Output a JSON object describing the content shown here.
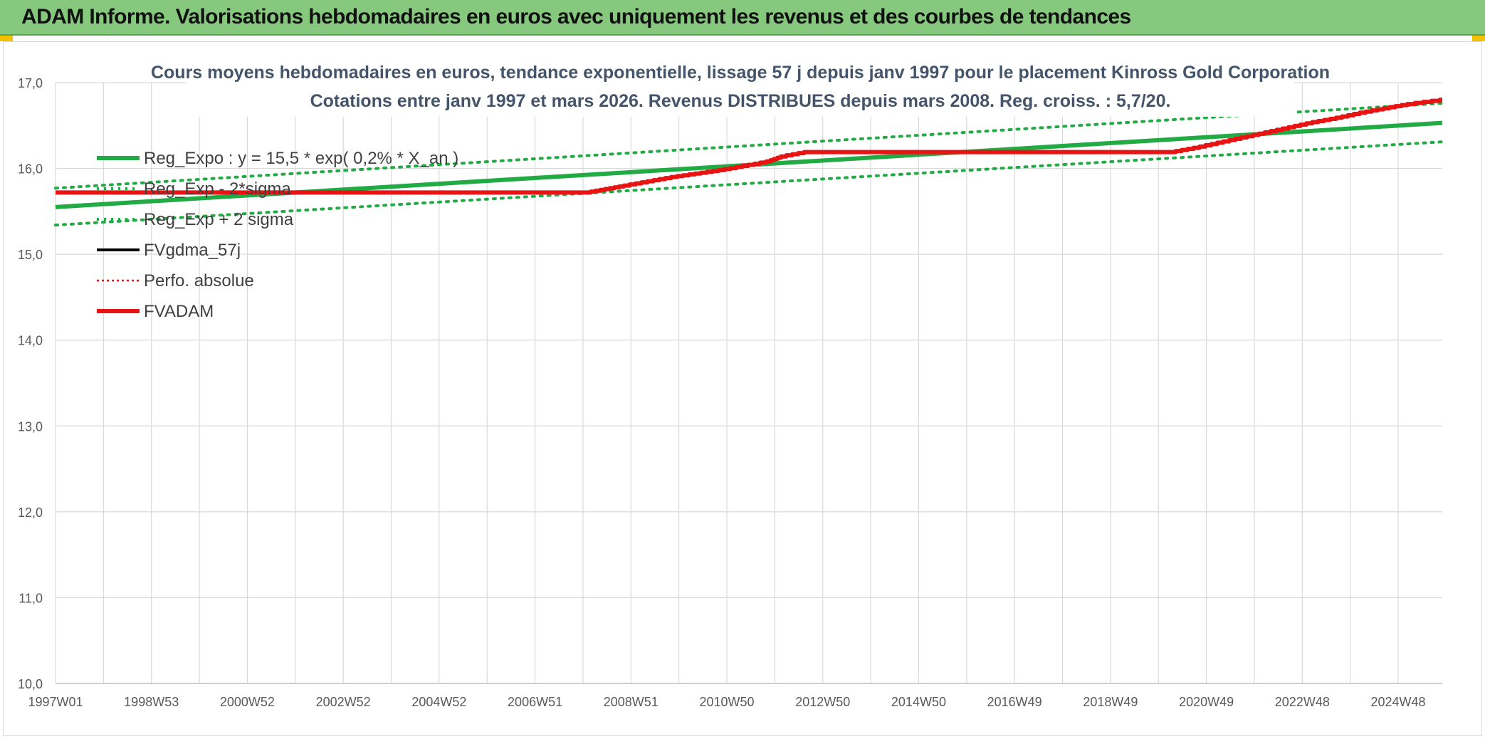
{
  "header": {
    "title": "ADAM Informe. Valorisations hebdomadaires en euros avec uniquement les revenus et des courbes de tendances"
  },
  "colors": {
    "banner": "#86c97e",
    "reg_expo": "#22aa44",
    "fvadam": "#e81414",
    "fvgdma": "#000000",
    "grid": "#d9d9d9",
    "accent": "#f2c100"
  },
  "chart_data": {
    "type": "line",
    "title": "Cours moyens hebdomadaires en euros, tendance exponentielle, lissage 57 j depuis janv 1997 pour le placement Kinross Gold Corporation",
    "subtitle": "Cotations entre janv 1997 et mars 2026. Revenus DISTRIBUES depuis mars 2008. Reg. croiss. : 5,7/20.",
    "x_ticks": [
      "1997W01",
      "1998W53",
      "2000W52",
      "2002W52",
      "2004W52",
      "2006W51",
      "2008W51",
      "2010W50",
      "2012W50",
      "2014W50",
      "2016W49",
      "2018W49",
      "2020W49",
      "2022W48",
      "2024W48"
    ],
    "y_ticks": [
      "10,0",
      "11,0",
      "12,0",
      "13,0",
      "14,0",
      "15,0",
      "16,0",
      "17,0"
    ],
    "x_range": [
      1997.0,
      2026.2
    ],
    "ylim": [
      10,
      17
    ],
    "grid": true,
    "legend_position": "top-left",
    "legend": [
      {
        "label": "Reg_Expo : y = 15,5 * exp( 0,2% *  X_an )",
        "style": "solid-thick",
        "color": "#22aa44"
      },
      {
        "label": "Reg_Exp - 2*sigma",
        "style": "dotted",
        "color": "#22aa44"
      },
      {
        "label": "Reg_Exp + 2 sigma",
        "style": "dotted",
        "color": "#22aa44"
      },
      {
        "label": "FVgdma_57j",
        "style": "solid",
        "color": "#000000"
      },
      {
        "label": "Perfo. absolue",
        "style": "dotted-thin",
        "color": "#e81414"
      },
      {
        "label": "FVADAM",
        "style": "solid-thick",
        "color": "#e81414"
      }
    ],
    "series": [
      {
        "name": "Reg_Expo : y = 15,5 * exp( 0,2% *  X_an )",
        "x": [
          1997.0,
          2026.2
        ],
        "y": [
          15.55,
          16.53
        ]
      },
      {
        "name": "Reg_Exp - 2*sigma",
        "x": [
          1997.0,
          2026.2
        ],
        "y": [
          15.34,
          16.31
        ]
      },
      {
        "name": "Reg_Exp + 2 sigma",
        "x": [
          1997.0,
          2026.2
        ],
        "y": [
          15.77,
          16.76
        ]
      },
      {
        "name": "FVADAM",
        "x": [
          1997.0,
          2008.2,
          2008.6,
          2009.0,
          2009.5,
          2010.0,
          2010.5,
          2011.0,
          2011.5,
          2012.0,
          2012.3,
          2012.8,
          2020.5,
          2021.0,
          2021.5,
          2022.0,
          2022.5,
          2023.0,
          2023.5,
          2024.0,
          2024.5,
          2025.0,
          2025.5,
          2026.2
        ],
        "y": [
          15.72,
          15.72,
          15.76,
          15.8,
          15.85,
          15.9,
          15.94,
          15.98,
          16.03,
          16.08,
          16.14,
          16.19,
          16.19,
          16.24,
          16.3,
          16.36,
          16.42,
          16.48,
          16.54,
          16.59,
          16.65,
          16.7,
          16.75,
          16.8
        ]
      }
    ]
  }
}
